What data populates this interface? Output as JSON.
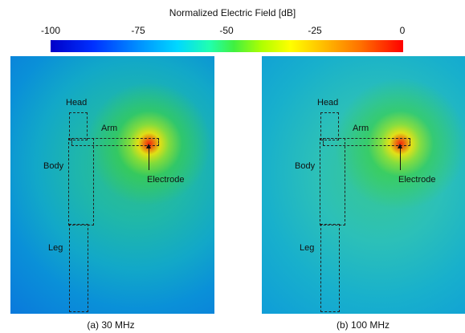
{
  "colorbar": {
    "title": "Normalized Electric Field [dB]",
    "ticks": [
      "-100",
      "-75",
      "-50",
      "-25",
      "0"
    ],
    "colors": [
      "#0000c8",
      "#0090ff",
      "#20ffb0",
      "#b0ff00",
      "#ffff00",
      "#ff7000",
      "#ff0000"
    ]
  },
  "labels": {
    "head": "Head",
    "arm": "Arm",
    "body": "Body",
    "leg": "Leg",
    "electrode": "Electrode"
  },
  "panels": [
    {
      "caption": "(a) 30 MHz"
    },
    {
      "caption": "(b) 100 MHz"
    }
  ]
}
